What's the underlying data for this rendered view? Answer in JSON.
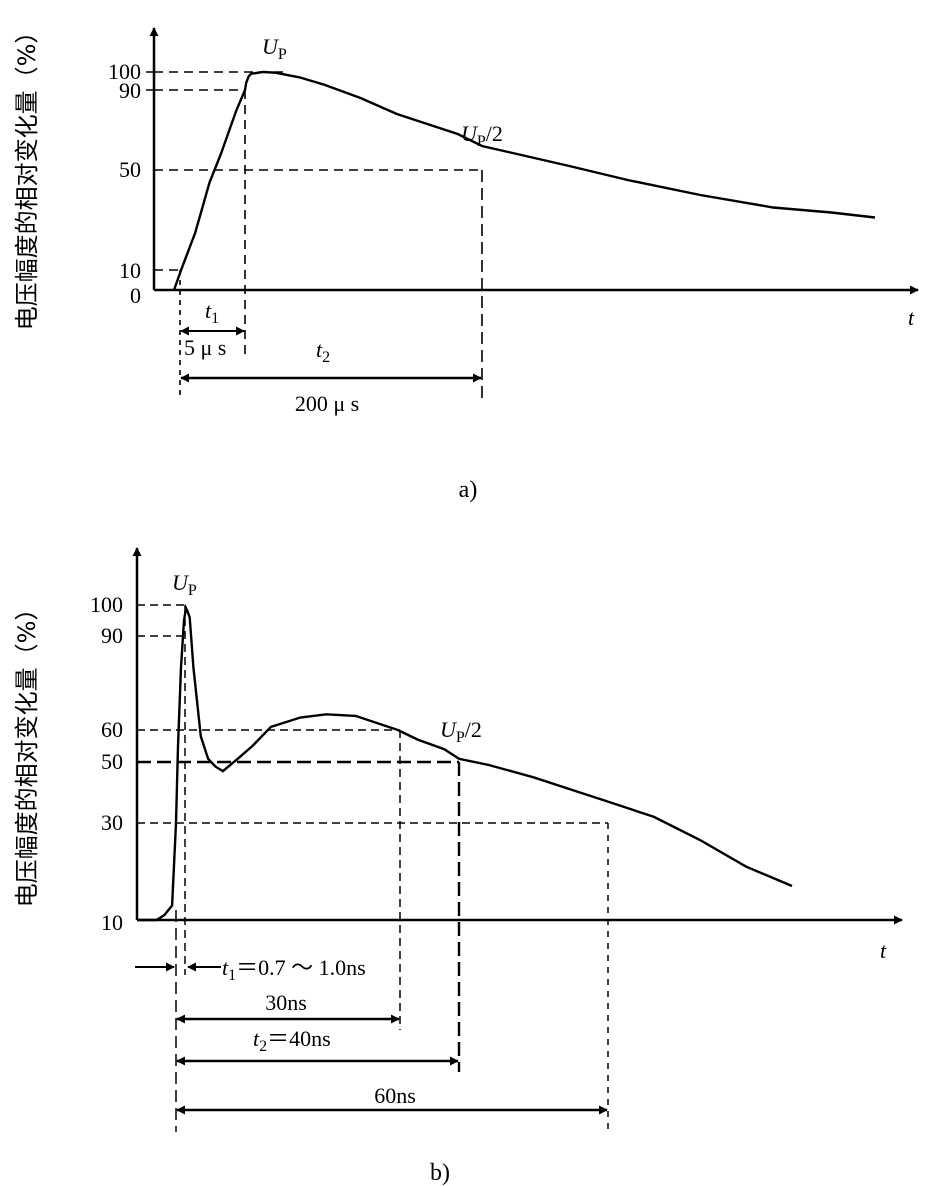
{
  "chart_data": [
    {
      "type": "line",
      "caption": "a)",
      "ylabel": "电压幅度的相对变化量（%）",
      "xlabel": "t",
      "yticks": [
        "100",
        "90",
        "50",
        "10",
        "0"
      ],
      "ytick_values": [
        100,
        90,
        50,
        10,
        0
      ],
      "annotations": {
        "peak": "U",
        "peak_sub": "P",
        "half": "U",
        "half_sub": "P",
        "half_suffix": "/2"
      },
      "t1": {
        "label": "t",
        "sub": "1",
        "value": "5 μ s"
      },
      "t2": {
        "label": "t",
        "sub": "2",
        "value": "200 μ s"
      },
      "series": [
        {
          "x": [
            0,
            0.5,
            1.5,
            2.5,
            3.3,
            4.0,
            4.4,
            5.0,
            6.0,
            8.0,
            10,
            20,
            30,
            50,
            70,
            100,
            130,
            150,
            180,
            200,
            230,
            260,
            300,
            350,
            400,
            440,
            470
          ],
          "y": [
            0,
            10,
            25,
            45,
            58,
            72,
            80,
            90,
            94,
            97.5,
            99,
            100,
            99.6,
            97,
            93,
            86,
            78,
            74,
            68,
            62,
            57,
            52,
            46,
            40,
            35,
            33,
            31
          ]
        }
      ]
    },
    {
      "type": "line",
      "caption": "b)",
      "ylabel": "电压幅度的相对变化量（%）",
      "xlabel": "t",
      "yticks": [
        "100",
        "90",
        "60",
        "50",
        "30",
        "10"
      ],
      "ytick_values": [
        100,
        90,
        60,
        50,
        30,
        10
      ],
      "annotations": {
        "peak": "U",
        "peak_sub": "P",
        "half": "U",
        "half_sub": "P",
        "half_suffix": "/2"
      },
      "t1": {
        "label": "t",
        "sub": "1",
        "value": "＝0.7 ～ 1.0ns"
      },
      "t2": {
        "label": "t",
        "sub": "2",
        "value": "＝40ns"
      },
      "spans": [
        "30ns",
        "60ns"
      ],
      "series": [
        {
          "x": [
            -5,
            -2.5,
            -1.5,
            -0.5,
            0,
            0.2,
            0.5,
            0.8,
            1.0,
            1.2,
            1.5,
            2.0,
            3.0,
            4.0,
            5.0,
            6.0,
            8.0,
            10.0,
            12.5,
            16.5,
            20,
            24,
            29.7,
            33,
            37.5,
            40,
            44,
            50,
            55,
            60,
            65,
            70,
            75,
            80
          ],
          "y": [
            10,
            10,
            11,
            13,
            30,
            55,
            80,
            95,
            99,
            98,
            96,
            80,
            58,
            51,
            48.5,
            47,
            51,
            55,
            61,
            64,
            65,
            64.5,
            60,
            57,
            54,
            51,
            49,
            45,
            41,
            37,
            32,
            26.5,
            21,
            17
          ]
        }
      ]
    }
  ]
}
